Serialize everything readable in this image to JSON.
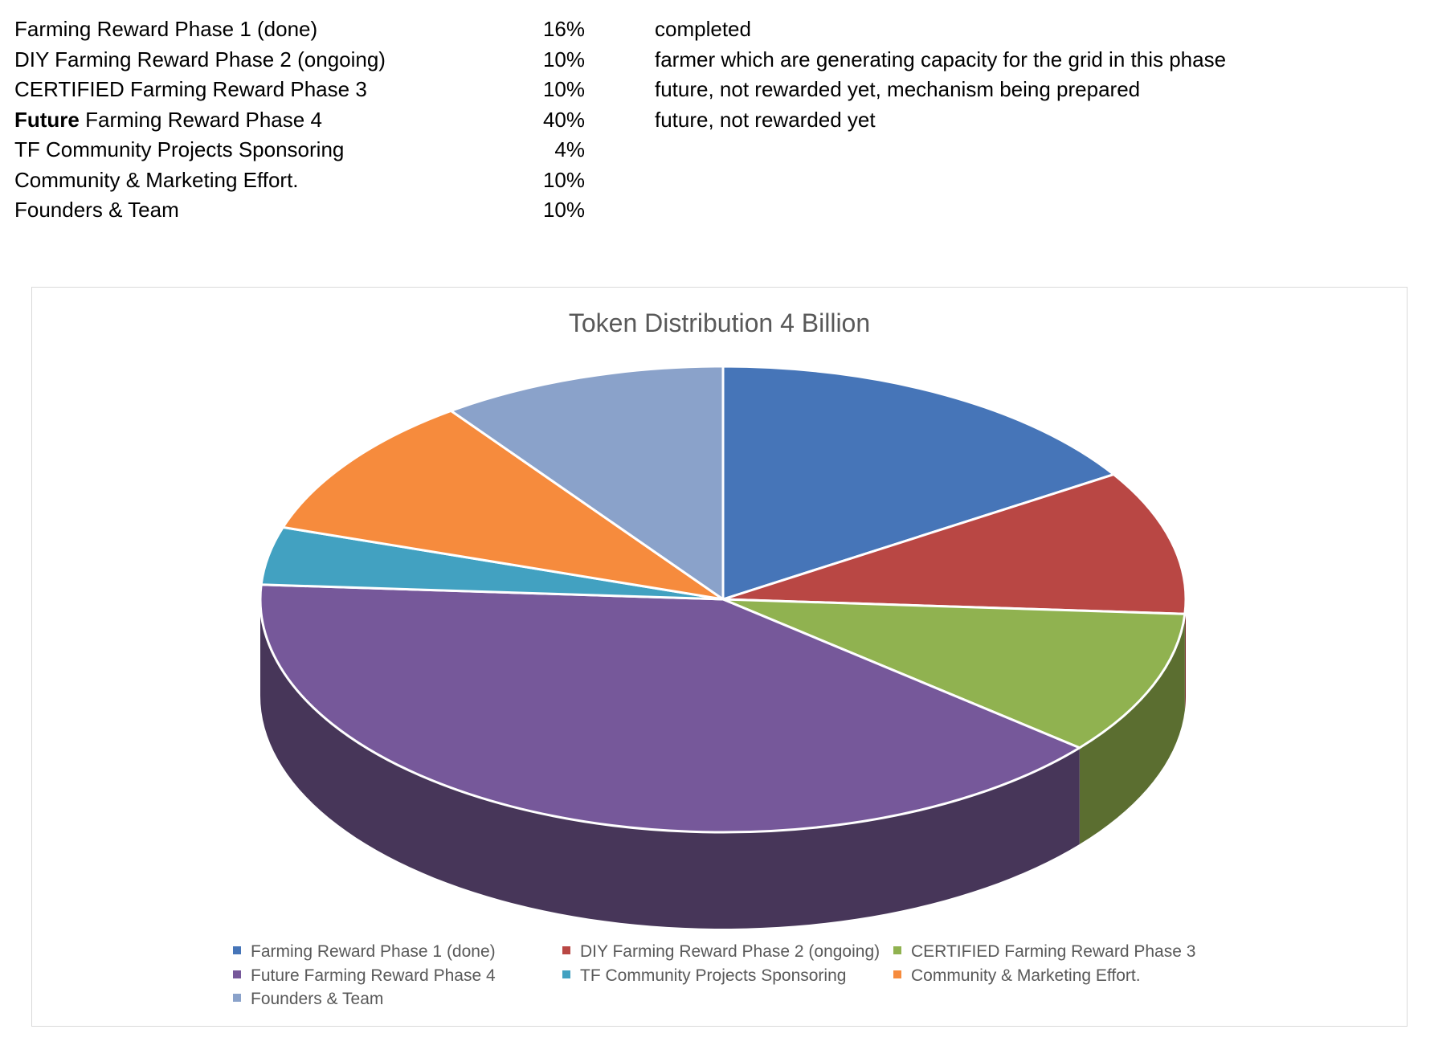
{
  "summary": {
    "rows": [
      {
        "lead": "",
        "label": "Farming Reward Phase 1 (done)",
        "pct": "16%",
        "note": "completed"
      },
      {
        "lead": "",
        "label": "DIY Farming Reward Phase 2 (ongoing)",
        "pct": "10%",
        "note": "farmer which are generating capacity for the grid in this phase"
      },
      {
        "lead": "",
        "label": "CERTIFIED Farming Reward Phase 3",
        "pct": "10%",
        "note": "future, not rewarded yet, mechanism being prepared"
      },
      {
        "lead": "Future",
        "label": " Farming Reward Phase 4",
        "pct": "40%",
        "note": "future, not rewarded yet"
      },
      {
        "lead": "",
        "label": "TF Community Projects Sponsoring",
        "pct": "4%",
        "note": ""
      },
      {
        "lead": "",
        "label": "Community & Marketing Effort.",
        "pct": "10%",
        "note": ""
      },
      {
        "lead": "",
        "label": "Founders & Team",
        "pct": "10%",
        "note": ""
      }
    ]
  },
  "chart_data": {
    "type": "pie",
    "variant": "3d",
    "title": "Token Distribution 4 Billion",
    "categories": [
      "Farming Reward Phase 1 (done)",
      "DIY Farming Reward Phase 2 (ongoing)",
      "CERTIFIED Farming Reward Phase 3",
      "Future Farming Reward Phase 4",
      "TF Community Projects Sponsoring",
      "Community & Marketing Effort.",
      "Founders & Team"
    ],
    "values": [
      16,
      10,
      10,
      40,
      4,
      10,
      10
    ],
    "colors": [
      "#4675b8",
      "#b94744",
      "#90b250",
      "#76589a",
      "#42a1c1",
      "#f68b3d",
      "#8aa2ca"
    ],
    "side_colors": [
      "#2e4e7a",
      "#7a2f2d",
      "#5b6e30",
      "#473659",
      "#2c6b80",
      "#a35c28",
      "#5c6c86"
    ],
    "legend_position": "bottom"
  }
}
